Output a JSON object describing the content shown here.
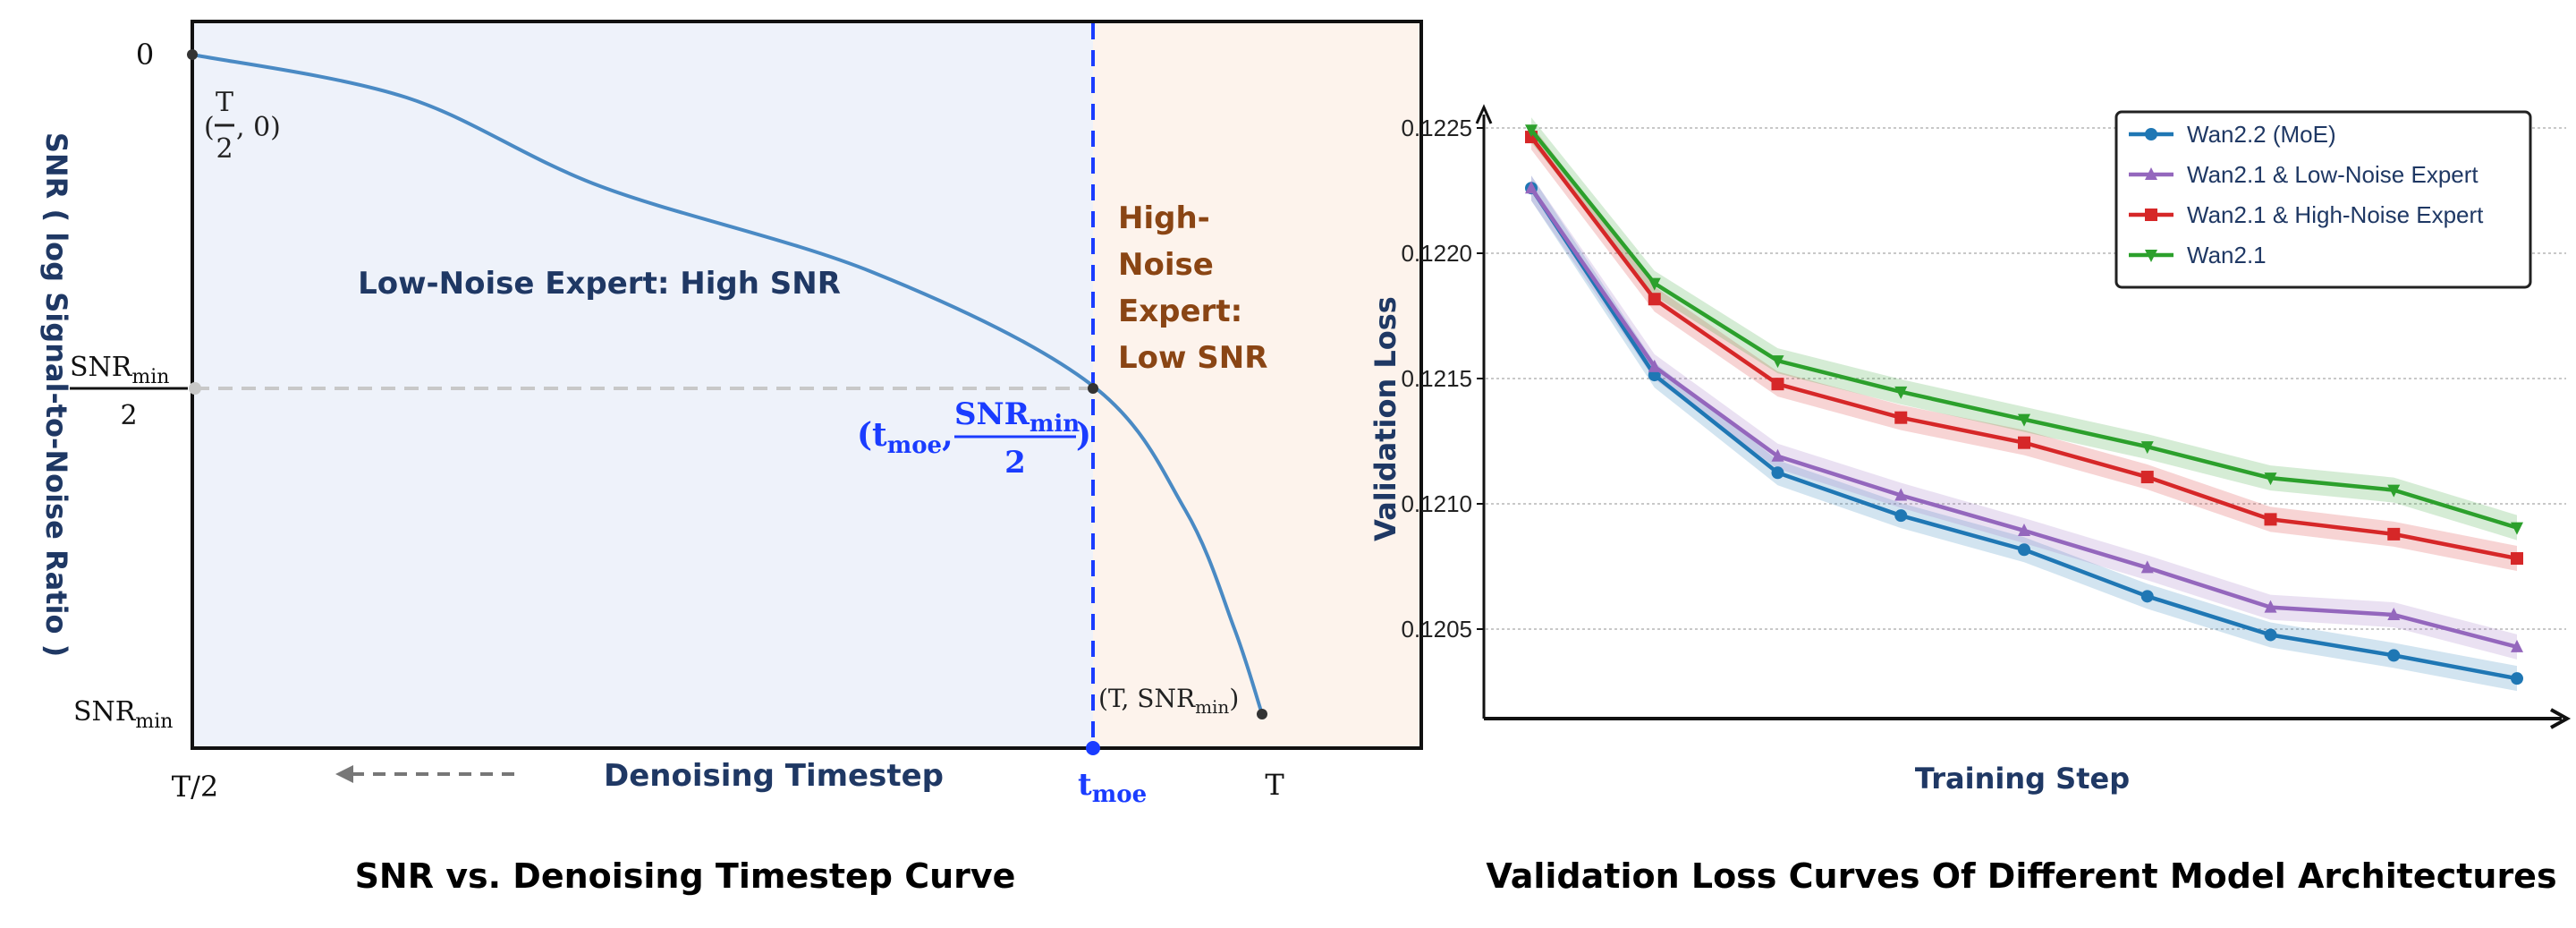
{
  "chart_data": [
    {
      "type": "line",
      "title": "SNR vs. Denoising Timestep Curve",
      "xlabel": "Denoising Timestep",
      "ylabel": "SNR ( log Signal-to-Noise Ratio )",
      "x_ticks": {
        "start": "T/2",
        "moe_main": "t",
        "moe_sub": "moe",
        "end": "T"
      },
      "y_ticks": {
        "zero": "0",
        "half": {
          "main": "SNR",
          "sub": "min",
          "den": "2"
        },
        "min": {
          "main": "SNR",
          "sub": "min"
        }
      },
      "curve": {
        "x_unit": "T",
        "y_unit": "SNR_min",
        "points": [
          [
            0.5,
            0
          ],
          [
            0.6,
            0.065
          ],
          [
            0.691,
            0.2
          ],
          [
            0.818,
            0.33
          ],
          [
            0.92,
            0.5
          ],
          [
            0.964,
            0.69
          ],
          [
            0.987,
            0.87
          ],
          [
            1.0,
            1.0
          ]
        ]
      },
      "t_moe": 0.92,
      "curve_color": "#4a8ac4",
      "moe_line_color": "#1a3cff",
      "regions": [
        {
          "label": "Low-Noise Expert: High SNR",
          "color": "#eef2fa",
          "text_color": "#1f3864"
        },
        {
          "label_lines": [
            "High-",
            "Noise",
            "Expert:",
            "Low SNR"
          ],
          "color": "#fdf3ec",
          "text_color": "#8a4514"
        }
      ],
      "annotations": {
        "start": {
          "open": "(",
          "num": "T",
          "den": "2",
          "rest": ", 0)"
        },
        "moe_point": {
          "open": "(",
          "t": "t",
          "t_sub": "moe",
          "sep": ",",
          "num": "SNR",
          "num_sub": "min",
          "den": "2",
          "close": ")"
        },
        "end": {
          "open": "(T, SNR",
          "sub": "min",
          "close": ")"
        }
      }
    },
    {
      "type": "line",
      "title": "Validation Loss Curves Of Different Model Architectures",
      "xlabel": "Training Step",
      "ylabel": "Validation Loss",
      "ylim": [
        0.1201,
        0.1227
      ],
      "y_ticks": [
        "0.1225",
        "0.1220",
        "0.1215",
        "0.1210",
        "0.1205"
      ],
      "grid": "horizontal dotted",
      "legend_position": "top-right",
      "x": [
        1,
        2,
        3,
        4,
        5,
        6,
        7,
        8,
        9
      ],
      "uncertainty_band": 5e-05,
      "series": [
        {
          "name": "Wan2.2 (MoE)",
          "color": "#1f77b4",
          "marker": "circle",
          "values": [
            0.12226,
            0.121514,
            0.121124,
            0.120953,
            0.120817,
            0.120631,
            0.120477,
            0.120395,
            0.120303
          ]
        },
        {
          "name": "Wan2.1 & Low-Noise Expert",
          "color": "#9467bd",
          "marker": "triangle-up",
          "values": [
            0.12226,
            0.121547,
            0.12119,
            0.121034,
            0.120893,
            0.120745,
            0.120587,
            0.120557,
            0.120429
          ]
        },
        {
          "name": "Wan2.1 & High-Noise Expert",
          "color": "#d62728",
          "marker": "square",
          "values": [
            0.122464,
            0.121817,
            0.121478,
            0.121344,
            0.121244,
            0.121107,
            0.120938,
            0.120879,
            0.120782
          ]
        },
        {
          "name": "Wan2.1",
          "color": "#2ca02c",
          "marker": "triangle-down",
          "values": [
            0.122492,
            0.12188,
            0.121571,
            0.121447,
            0.121337,
            0.121228,
            0.121103,
            0.121055,
            0.120905
          ]
        }
      ]
    }
  ]
}
